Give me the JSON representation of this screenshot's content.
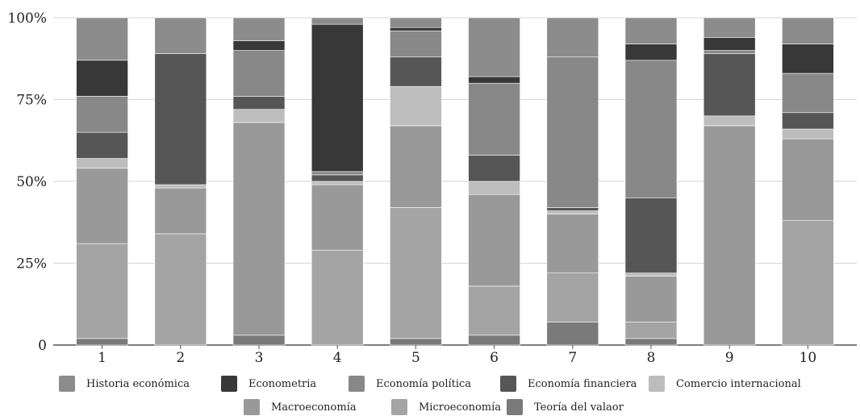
{
  "chart_data": {
    "type": "bar",
    "stacked": true,
    "normalized": true,
    "categories": [
      "1",
      "2",
      "3",
      "4",
      "5",
      "6",
      "7",
      "8",
      "9",
      "10"
    ],
    "y_ticks": [
      "0",
      "25%",
      "50%",
      "75%",
      "100%"
    ],
    "ylim": [
      0,
      100
    ],
    "grid": true,
    "legend_position": "bottom",
    "series": [
      {
        "name": "Teoría del valaor",
        "color": "#7a7a7a",
        "values": [
          2,
          0,
          3,
          0,
          2,
          3,
          7,
          2,
          0,
          0
        ]
      },
      {
        "name": "Microeconomía",
        "color": "#a4a4a4",
        "values": [
          29,
          34,
          0,
          29,
          40,
          15,
          15,
          5,
          0,
          38
        ]
      },
      {
        "name": "Macroeconomía",
        "color": "#999999",
        "values": [
          23,
          14,
          65,
          20,
          25,
          28,
          18,
          14,
          67,
          25
        ]
      },
      {
        "name": "Comercio internacional",
        "color": "#bdbdbd",
        "values": [
          3,
          1,
          4,
          1,
          12,
          4,
          1,
          1,
          3,
          3
        ]
      },
      {
        "name": "Economía financiera",
        "color": "#565656",
        "values": [
          8,
          40,
          4,
          2,
          9,
          8,
          1,
          23,
          19,
          5
        ]
      },
      {
        "name": "Economía política",
        "color": "#888888",
        "values": [
          11,
          0,
          14,
          1,
          8,
          22,
          46,
          42,
          1,
          12
        ]
      },
      {
        "name": "Econometria",
        "color": "#383838",
        "values": [
          11,
          0,
          3,
          45,
          1,
          2,
          0,
          5,
          4,
          9
        ]
      },
      {
        "name": "Historia económica",
        "color": "#8c8c8c",
        "values": [
          13,
          11,
          7,
          2,
          3,
          18,
          12,
          8,
          6,
          8
        ]
      }
    ],
    "legend_order": [
      "Historia económica",
      "Econometria",
      "Economía política",
      "Economía financiera",
      "Comercio internacional",
      "Macroeconomía",
      "Microeconomía",
      "Teoría del valaor"
    ]
  }
}
